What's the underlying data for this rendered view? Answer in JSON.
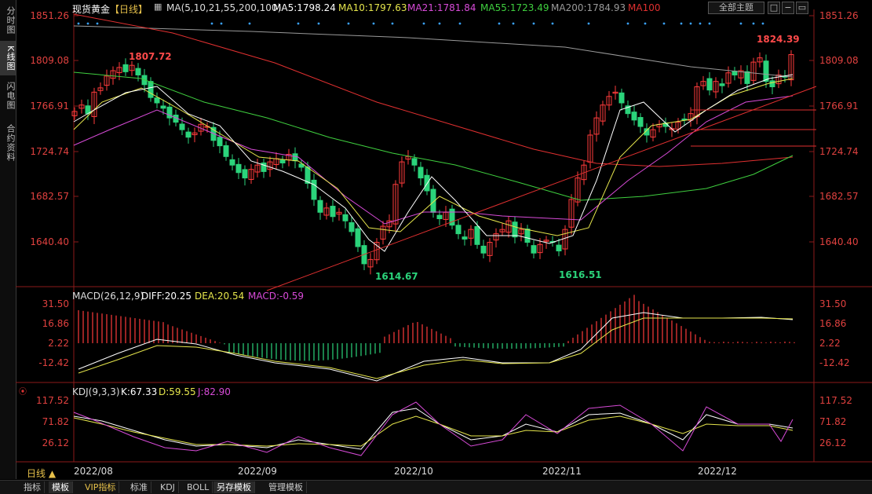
{
  "sidebar": {
    "tabs": [
      {
        "label": "分时图",
        "top": 4,
        "h": 44
      },
      {
        "label": "K线图",
        "top": 52,
        "h": 44,
        "active": true
      },
      {
        "label": "闪电图",
        "top": 100,
        "h": 44
      },
      {
        "label": "合约资料",
        "top": 152,
        "h": 60
      }
    ]
  },
  "header": {
    "name": "现货黄金",
    "period": "【日线】",
    "ma_params": "MA(5,10,21,55,200,100)",
    "ma5": "MA5:1798.24",
    "ma10": "MA10:1797.63",
    "ma21": "MA21:1781.84",
    "ma55": "MA55:1723.49",
    "ma200": "MA200:1784.93",
    "ma100": "MA100",
    "theme_button": "全部主题"
  },
  "main_axis": {
    "ticks": [
      "1851.26",
      "1809.08",
      "1766.91",
      "1724.74",
      "1682.57",
      "1640.40"
    ]
  },
  "annotations": {
    "high1": "1807.72",
    "high2": "1824.39",
    "low1": "1614.67",
    "low2": "1616.51"
  },
  "macd": {
    "title": "MACD(26,12,9)",
    "diff": "DIFF:20.25",
    "dea": "DEA:20.54",
    "macd": "MACD:-0.59",
    "ticks": [
      "31.50",
      "16.86",
      "2.22",
      "-12.42"
    ]
  },
  "kdj": {
    "title": "KDJ(9,3,3)",
    "k": "K:67.33",
    "d": "D:59.55",
    "j": "J:82.90",
    "ticks": [
      "117.52",
      "71.82",
      "26.12"
    ]
  },
  "dates": [
    "2022/08",
    "2022/09",
    "2022/10",
    "2022/11",
    "2022/12"
  ],
  "period_selector": "日线 ▲",
  "bottom_tabs": [
    "指标",
    "模板",
    "VIP指标",
    "标准",
    "KDJ",
    "BOLL",
    "另存模板",
    "管理模板"
  ],
  "colors": {
    "up": "#ff3b3b",
    "down": "#2bd47b",
    "ma5": "#ffffff",
    "ma10": "#e6e64c",
    "ma21": "#d84bd8",
    "ma55": "#3fcf3f",
    "ma200": "#9a9a9a",
    "ma100": "#e03030"
  }
}
